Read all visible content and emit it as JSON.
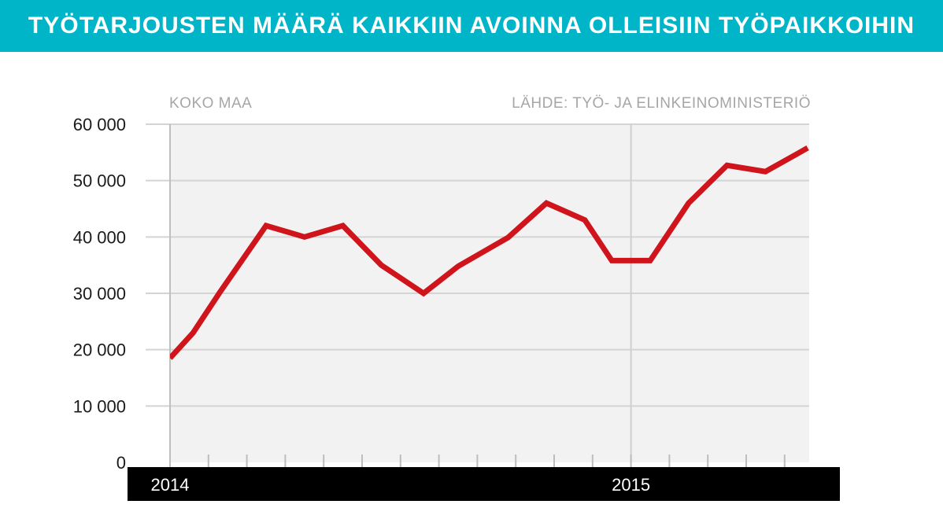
{
  "title": "TYÖTARJOUSTEN MÄÄRÄ KAIKKIIN AVOINNA OLLEISIIN TYÖPAIKKOIHIN",
  "subtitle_left": "KOKO MAA",
  "source": "LÄHDE: TYÖ- JA ELINKEINOMINISTERIÖ",
  "colors": {
    "title_bar": "#00b5c8",
    "line": "#d0141c",
    "plot_bg": "#f2f2f2",
    "axis_band": "#000000",
    "note_text": "#a6a6a6"
  },
  "chart_data": {
    "type": "line",
    "title": "TYÖTARJOUSTEN MÄÄRÄ KAIKKIIN AVOINNA OLLEISIIN TYÖPAIKKOIHIN",
    "y_tick_labels": [
      "0",
      "10 000",
      "20 000",
      "30 000",
      "40 000",
      "50 000",
      "60 000"
    ],
    "y_ticks": [
      0,
      10000,
      20000,
      30000,
      40000,
      50000,
      60000
    ],
    "ylim": [
      0,
      60000
    ],
    "x_labels": [
      {
        "month_index": 0,
        "label": "2014"
      },
      {
        "month_index": 12,
        "label": "2015"
      }
    ],
    "grid": true,
    "series": [
      {
        "x": [
          0,
          0.6,
          1.3,
          2.5,
          3.5,
          4.5,
          5.5,
          6.6,
          7.5,
          8.8,
          9.8,
          10.8,
          11.5,
          12.5,
          13.5,
          14.5,
          15.5,
          16.6
        ],
        "values": [
          18500,
          23000,
          30200,
          42000,
          40000,
          42000,
          35000,
          30000,
          34800,
          39900,
          46000,
          43000,
          35800,
          35800,
          46000,
          52700,
          51600,
          55800
        ]
      }
    ]
  }
}
